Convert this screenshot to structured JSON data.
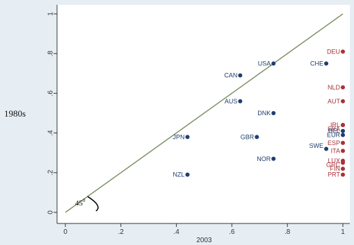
{
  "chart_data": {
    "type": "scatter",
    "xlabel": "2003",
    "ylabel": "1980s",
    "xlim": [
      0,
      1
    ],
    "ylim": [
      0,
      1
    ],
    "x_ticks": [
      "0",
      ".2",
      ".4",
      ".6",
      ".8",
      "1"
    ],
    "y_ticks": [
      "0",
      ".2",
      ".4",
      ".6",
      ".8",
      "1"
    ],
    "grid": false,
    "reference_line": "45-degree line",
    "angle_annotation": "45",
    "angle_annotation_superscript": "0",
    "colors": {
      "blue_points": "#1f3e6e",
      "red_points": "#a8323a",
      "reference_line": "#7f9366",
      "plot_background": "#ffffff",
      "outer_background": "#e7eef3"
    },
    "points": [
      {
        "label": "DEU",
        "x": 1.0,
        "y": 0.81,
        "color": "red",
        "side": "left"
      },
      {
        "label": "USA",
        "x": 0.75,
        "y": 0.75,
        "color": "blue",
        "side": "left"
      },
      {
        "label": "CHE",
        "x": 0.94,
        "y": 0.75,
        "color": "blue",
        "side": "left"
      },
      {
        "label": "CAN",
        "x": 0.63,
        "y": 0.69,
        "color": "blue",
        "side": "left"
      },
      {
        "label": "NLD",
        "x": 1.0,
        "y": 0.63,
        "color": "red",
        "side": "left"
      },
      {
        "label": "AUS",
        "x": 0.63,
        "y": 0.56,
        "color": "blue",
        "side": "left"
      },
      {
        "label": "AUT",
        "x": 1.0,
        "y": 0.56,
        "color": "red",
        "side": "left"
      },
      {
        "label": "DNK",
        "x": 0.75,
        "y": 0.5,
        "color": "blue",
        "side": "left"
      },
      {
        "label": "FRA",
        "x": 1.0,
        "y": 0.44,
        "color": "red",
        "side": "left",
        "label_dy": -0.02
      },
      {
        "label": "IRL",
        "x": 1.0,
        "y": 0.44,
        "color": "red",
        "side": "left",
        "label_dy": 0.0
      },
      {
        "label": "BEL",
        "x": 1.0,
        "y": 0.41,
        "color": "blue",
        "side": "left"
      },
      {
        "label": "EUR",
        "x": 1.0,
        "y": 0.39,
        "color": "blue",
        "side": "left"
      },
      {
        "label": "JPN",
        "x": 0.44,
        "y": 0.38,
        "color": "blue",
        "side": "left"
      },
      {
        "label": "GBR",
        "x": 0.69,
        "y": 0.38,
        "color": "blue",
        "side": "left"
      },
      {
        "label": "ESP",
        "x": 1.0,
        "y": 0.35,
        "color": "red",
        "side": "left"
      },
      {
        "label": "SWE",
        "x": 0.94,
        "y": 0.32,
        "color": "blue",
        "side": "left",
        "label_dy": 0.015
      },
      {
        "label": "ITA",
        "x": 1.0,
        "y": 0.31,
        "color": "red",
        "side": "left"
      },
      {
        "label": "NOR",
        "x": 0.75,
        "y": 0.27,
        "color": "blue",
        "side": "left"
      },
      {
        "label": "LUX",
        "x": 1.0,
        "y": 0.26,
        "color": "red",
        "side": "left"
      },
      {
        "label": "GRC",
        "x": 1.0,
        "y": 0.25,
        "color": "red",
        "side": "left",
        "label_dy": -0.01
      },
      {
        "label": "FIN",
        "x": 1.0,
        "y": 0.22,
        "color": "red",
        "side": "left"
      },
      {
        "label": "PRT",
        "x": 1.0,
        "y": 0.19,
        "color": "red",
        "side": "left"
      },
      {
        "label": "NZL",
        "x": 0.44,
        "y": 0.19,
        "color": "blue",
        "side": "left"
      }
    ]
  }
}
